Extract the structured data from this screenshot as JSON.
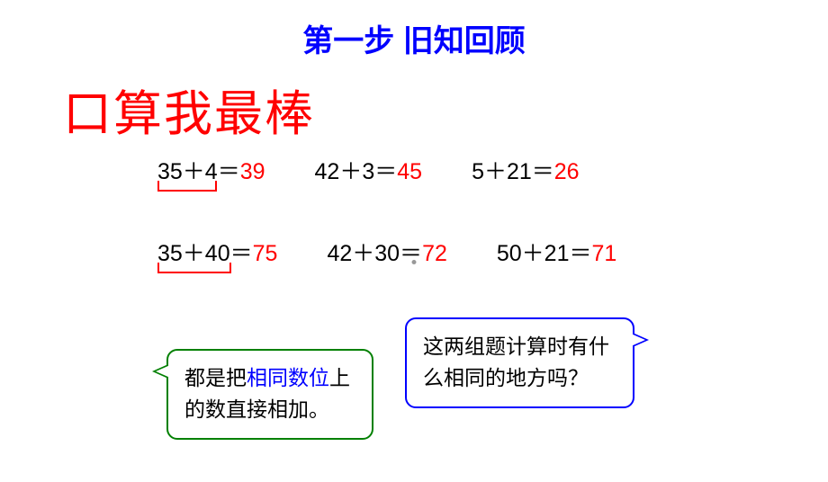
{
  "title": "第一步  旧知回顾",
  "subtitle": "口算我最棒",
  "colors": {
    "title": "#0000ff",
    "subtitle": "#ff0000",
    "expression": "#000000",
    "result": "#ff0000",
    "bracket": "#ff0000",
    "bubble_left_border": "#008000",
    "bubble_right_border": "#0000ff",
    "highlight": "#0000ff",
    "background": "#ffffff"
  },
  "equations": {
    "row1": [
      {
        "expr": "35＋4＝",
        "result": "39",
        "has_bracket": true
      },
      {
        "expr": "42＋3＝",
        "result": "45",
        "has_bracket": false
      },
      {
        "expr": "5＋21＝",
        "result": "26",
        "has_bracket": false
      }
    ],
    "row2": [
      {
        "expr": "35＋40＝",
        "result": "75",
        "has_bracket": true
      },
      {
        "expr": "42＋30＝",
        "result": "72",
        "has_bracket": false
      },
      {
        "expr": "50＋21＝",
        "result": "71",
        "has_bracket": false
      }
    ]
  },
  "bubbles": {
    "left": {
      "prefix": "都是把",
      "highlight": "相同数位",
      "suffix": "上的数直接相加。"
    },
    "right": {
      "text": "这两组题计算时有什么相同的地方吗？"
    }
  },
  "typography": {
    "title_fontsize": 34,
    "subtitle_fontsize": 54,
    "equation_fontsize": 25,
    "bubble_fontsize": 23
  }
}
